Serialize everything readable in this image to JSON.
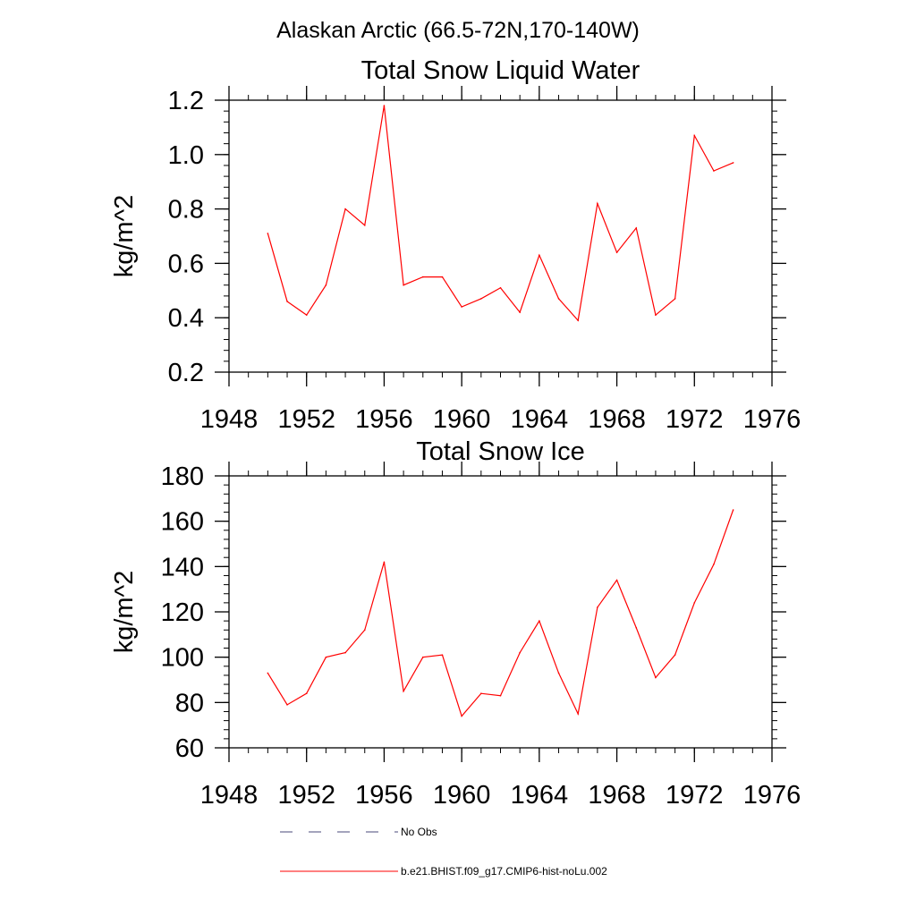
{
  "figure": {
    "suptitle": "Alaskan Arctic (66.5-72N,170-140W)"
  },
  "chart_data": [
    {
      "type": "line",
      "title": "Total Snow Liquid Water",
      "xlabel": "",
      "ylabel": "kg/m^2",
      "xlim": [
        1948,
        1976
      ],
      "ylim": [
        0.2,
        1.2
      ],
      "xticks": [
        1948,
        1952,
        1956,
        1960,
        1964,
        1968,
        1972,
        1976
      ],
      "xtick_labels": [
        "1948",
        "1952",
        "1956",
        "1960",
        "1964",
        "1968",
        "1972",
        "1976"
      ],
      "yticks": [
        0.2,
        0.4,
        0.6,
        0.8,
        1.0,
        1.2
      ],
      "ytick_labels": [
        "0.2",
        "0.4",
        "0.6",
        "0.8",
        "1.0",
        "1.2"
      ],
      "x": [
        1950,
        1951,
        1952,
        1953,
        1954,
        1955,
        1956,
        1957,
        1958,
        1959,
        1960,
        1961,
        1962,
        1963,
        1964,
        1965,
        1966,
        1967,
        1968,
        1969,
        1970,
        1971,
        1972,
        1973,
        1974
      ],
      "series": [
        {
          "name": "b.e21.BHIST.f09_g17.CMIP6-hist-noLu.002",
          "color": "#ff0000",
          "values": [
            0.71,
            0.46,
            0.41,
            0.52,
            0.8,
            0.74,
            1.18,
            0.52,
            0.55,
            0.55,
            0.44,
            0.47,
            0.51,
            0.42,
            0.63,
            0.47,
            0.39,
            0.82,
            0.64,
            0.73,
            0.41,
            0.47,
            1.07,
            0.94,
            0.97
          ]
        }
      ]
    },
    {
      "type": "line",
      "title": "Total Snow Ice",
      "xlabel": "",
      "ylabel": "kg/m^2",
      "xlim": [
        1948,
        1976
      ],
      "ylim": [
        60,
        180
      ],
      "xticks": [
        1948,
        1952,
        1956,
        1960,
        1964,
        1968,
        1972,
        1976
      ],
      "xtick_labels": [
        "1948",
        "1952",
        "1956",
        "1960",
        "1964",
        "1968",
        "1972",
        "1976"
      ],
      "yticks": [
        60,
        80,
        100,
        120,
        140,
        160,
        180
      ],
      "ytick_labels": [
        "60",
        "80",
        "100",
        "120",
        "140",
        "160",
        "180"
      ],
      "x": [
        1950,
        1951,
        1952,
        1953,
        1954,
        1955,
        1956,
        1957,
        1958,
        1959,
        1960,
        1961,
        1962,
        1963,
        1964,
        1965,
        1966,
        1967,
        1968,
        1969,
        1970,
        1971,
        1972,
        1973,
        1974
      ],
      "series": [
        {
          "name": "b.e21.BHIST.f09_g17.CMIP6-hist-noLu.002",
          "color": "#ff0000",
          "values": [
            93,
            79,
            84,
            100,
            102,
            112,
            142,
            85,
            100,
            101,
            74,
            84,
            83,
            102,
            116,
            93,
            75,
            122,
            134,
            113,
            91,
            101,
            124,
            141,
            165
          ]
        }
      ]
    }
  ],
  "legend": {
    "placement": "bottom",
    "items": [
      {
        "label": "No Obs",
        "style": "dashed",
        "color": "#4a4a7a"
      },
      {
        "label": "b.e21.BHIST.f09_g17.CMIP6-hist-noLu.002",
        "style": "solid",
        "color": "#ff0000"
      }
    ]
  }
}
